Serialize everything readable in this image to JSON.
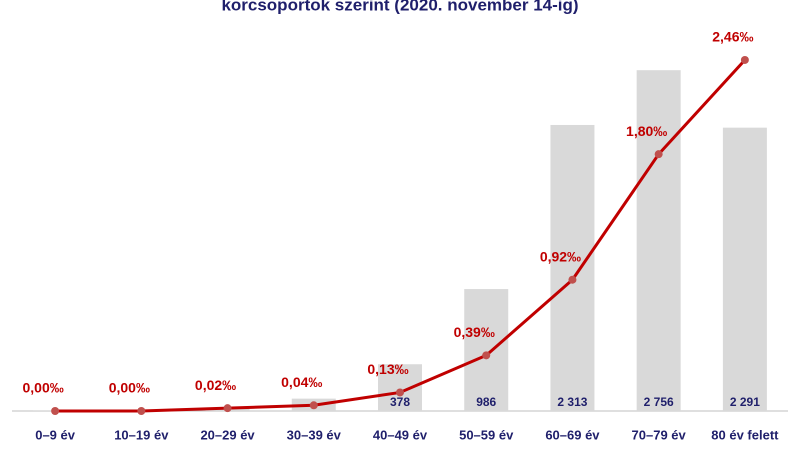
{
  "chart_data": {
    "type": "bar",
    "title": "korcsoportok szerint (2020. november 14-ig)",
    "categories": [
      "0–9 év",
      "10–19 év",
      "20–29 év",
      "30–39 év",
      "40–49 év",
      "50–59 év",
      "60–69 év",
      "70–79 év",
      "80 év felett"
    ],
    "ylim": [
      0,
      3000
    ],
    "y2lim": [
      0,
      2.6
    ],
    "series": [
      {
        "type": "bar",
        "color": "#d9d9d9",
        "values": [
          1,
          3,
          20,
          100,
          378,
          986,
          2313,
          2756,
          2291
        ],
        "value_labels": [
          null,
          null,
          null,
          null,
          "378",
          "986",
          "2 313",
          "2 756",
          "2 291"
        ]
      },
      {
        "type": "line",
        "axis": "y2",
        "color": "#c00000",
        "values": [
          0.0,
          0.0,
          0.02,
          0.04,
          0.13,
          0.39,
          0.92,
          1.8,
          2.46
        ],
        "value_labels": [
          "0,00‰",
          "0,00‰",
          "0,02‰",
          "0,04‰",
          "0,13‰",
          "0,39‰",
          "0,92‰",
          "1,80‰",
          "2,46‰"
        ]
      }
    ]
  }
}
